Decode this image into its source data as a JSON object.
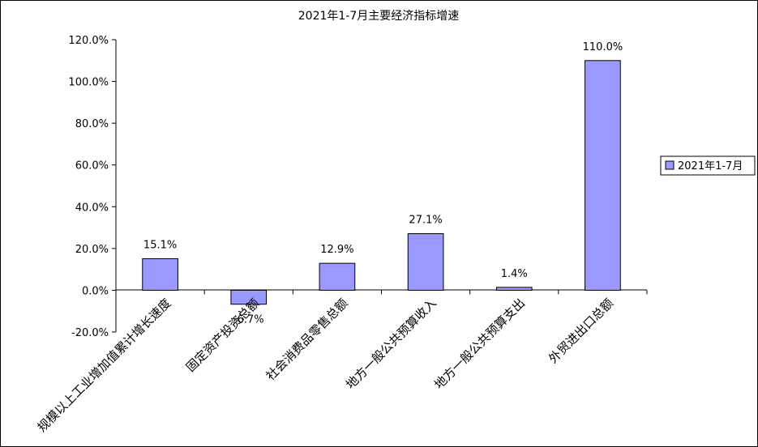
{
  "chart_data": {
    "type": "bar",
    "title": "2021年1-7月主要经济指标增速",
    "categories": [
      "规模以上工业增加值累计增长速度",
      "固定资产投资总额",
      "社会消费品零售总额",
      "地方一般公共预算收入",
      "地方一般公共预算支出",
      "外贸进出口总额"
    ],
    "series": [
      {
        "name": "2021年1-7月",
        "values": [
          15.1,
          -6.7,
          12.9,
          27.1,
          1.4,
          110.0
        ],
        "labels": [
          "15.1%",
          "-6.7%",
          "12.9%",
          "27.1%",
          "1.4%",
          "110.0%"
        ]
      }
    ],
    "yticks": [
      "120.0%",
      "100.0%",
      "80.0%",
      "60.0%",
      "40.0%",
      "20.0%",
      "0.0%",
      "-20.0%"
    ],
    "ylim": [
      -20,
      120
    ],
    "grid": false,
    "legend_position": "right",
    "colors": {
      "bar_fill": "#9999ff",
      "bar_stroke": "#000000"
    }
  }
}
